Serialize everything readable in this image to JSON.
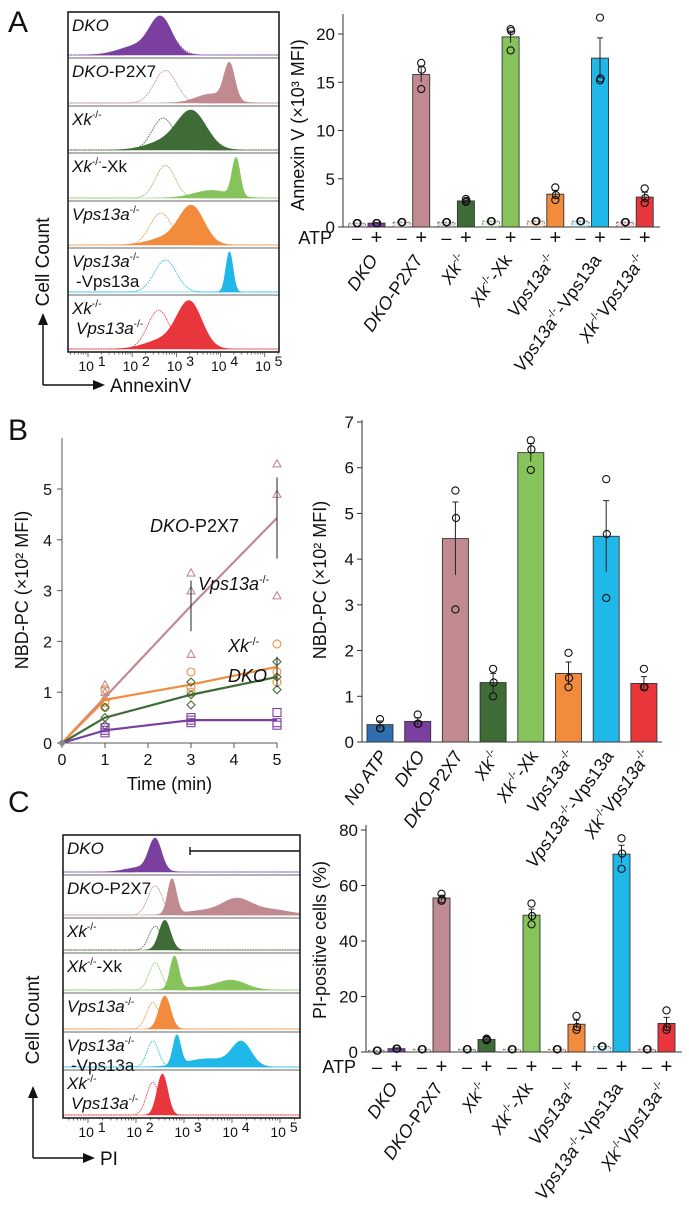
{
  "panels": {
    "a": "A",
    "b": "B",
    "c": "C"
  },
  "labels": {
    "DKO": [
      {
        "t": "DKO",
        "i": true
      }
    ],
    "DKO-P2X7": [
      {
        "t": "DKO",
        "i": true
      },
      {
        "t": "-P2X7"
      }
    ],
    "Xk-/-": [
      {
        "t": "Xk",
        "i": true
      },
      {
        "t": "-/-",
        "sup": true
      }
    ],
    "Xk-/--Xk": [
      {
        "t": "Xk",
        "i": true
      },
      {
        "t": "-/-",
        "sup": true
      },
      {
        "t": "-Xk"
      }
    ],
    "Vps13a-/-": [
      {
        "t": "Vps13a",
        "i": true
      },
      {
        "t": "-/-",
        "sup": true
      }
    ],
    "Vps13a-/--Vps13a": [
      {
        "t": "Vps13a",
        "i": true
      },
      {
        "t": "-/-",
        "sup": true
      },
      {
        "t": "-Vps13a"
      }
    ],
    "Xk-/-Vps13a-/-": [
      {
        "t": "Xk",
        "i": true
      },
      {
        "t": "-/-",
        "sup": true
      },
      {
        "t": "Vps13a",
        "i": true
      },
      {
        "t": "-/-",
        "sup": true
      }
    ],
    "No ATP": [
      {
        "t": "No ATP",
        "i": true
      }
    ],
    "-Vps13a": [
      {
        "t": "-Vps13a"
      }
    ]
  },
  "colors": {
    "DKO": "#7b3fa0",
    "DKO-P2X7": "#c08a90",
    "Xk-/-": "#3e6b36",
    "Xk-/--Xk": "#86c35a",
    "Vps13a-/-": "#f28c3c",
    "Vps13a-/--Vps13a": "#1fb8e8",
    "Xk-/-Vps13a-/-": "#e8363c",
    "No ATP": "#2f6fb0"
  },
  "chart_data": [
    {
      "panel": "A",
      "type": "area",
      "xlabel": "AnnexinV",
      "ylabel": "Cell Count",
      "x_scale": "log",
      "x_ticks": [
        "10^1",
        "10^2",
        "10^3",
        "10^4",
        "10^5"
      ],
      "rows": [
        {
          "label": [
            "DKO"
          ],
          "control_peak": [
            2.65,
            0.28
          ],
          "peaks": [
            [
              2.65,
              0.25,
              1
            ],
            [
              2.1,
              0.4,
              0.25
            ]
          ]
        },
        {
          "label": [
            "DKO-P2X7"
          ],
          "control_peak": [
            2.75,
            0.25
          ],
          "peaks": [
            [
              4.2,
              0.12,
              1
            ],
            [
              3.8,
              0.35,
              0.25
            ]
          ]
        },
        {
          "label": [
            "Xk-/-"
          ],
          "control_peak": [
            2.7,
            0.25
          ],
          "peaks": [
            [
              3.35,
              0.33,
              1
            ],
            [
              2.7,
              0.4,
              0.2
            ]
          ]
        },
        {
          "label": [
            "Xk-/--Xk"
          ],
          "control_peak": [
            2.75,
            0.22
          ],
          "peaks": [
            [
              4.35,
              0.09,
              1
            ],
            [
              3.8,
              0.4,
              0.2
            ]
          ]
        },
        {
          "label": [
            "Vps13a-/-"
          ],
          "control_peak": [
            2.65,
            0.25
          ],
          "peaks": [
            [
              3.35,
              0.28,
              1
            ],
            [
              2.8,
              0.4,
              0.2
            ]
          ]
        },
        {
          "label": [
            "Vps13a-/-",
            "-Vps13a"
          ],
          "control_peak": [
            2.75,
            0.25
          ],
          "peaks": [
            [
              4.2,
              0.08,
              1
            ]
          ]
        },
        {
          "label": [
            "Xk-/-",
            "Vps13a-/-"
          ],
          "control_peak": [
            2.6,
            0.25
          ],
          "peaks": [
            [
              3.3,
              0.28,
              1
            ],
            [
              2.7,
              0.4,
              0.2
            ]
          ]
        }
      ]
    },
    {
      "panel": "A",
      "type": "bar",
      "ylabel": "Annexin V (×10³ MFI)",
      "ylim": [
        0,
        20
      ],
      "y_ticks": [
        "0",
        "5",
        "10",
        "15",
        "20"
      ],
      "atp_label": "ATP",
      "minus": "–",
      "plus": "+",
      "categories": [
        "DKO",
        "DKO-P2X7",
        "Xk-/-",
        "Xk-/--Xk",
        "Vps13a-/-",
        "Vps13a-/--Vps13a",
        "Xk-/-Vps13a-/-"
      ],
      "minus_values": [
        0.4,
        0.5,
        0.5,
        0.6,
        0.6,
        0.6,
        0.5
      ],
      "plus_values": [
        0.4,
        15.8,
        2.7,
        19.7,
        3.4,
        17.5,
        3.1
      ],
      "plus_sem": [
        0.05,
        0.8,
        0.1,
        0.6,
        0.4,
        2.1,
        0.5
      ],
      "minus_points": [
        [
          0.4,
          0.4,
          0.4
        ],
        [
          0.5,
          0.5,
          0.5
        ],
        [
          0.5,
          0.5,
          0.5
        ],
        [
          0.6,
          0.6,
          0.6
        ],
        [
          0.6,
          0.6,
          0.6
        ],
        [
          0.6,
          0.6,
          0.6
        ],
        [
          0.5,
          0.5,
          0.5
        ]
      ],
      "plus_points": [
        [
          0.4,
          0.4,
          0.4
        ],
        [
          17.0,
          16.3,
          14.3
        ],
        [
          2.9,
          2.7,
          2.6
        ],
        [
          20.5,
          20.3,
          18.3
        ],
        [
          4.1,
          3.3,
          2.8
        ],
        [
          21.7,
          15.4,
          15.2
        ],
        [
          4.0,
          3.0,
          2.5
        ]
      ]
    },
    {
      "panel": "B",
      "type": "line",
      "xlabel": "Time (min)",
      "ylabel": "NBD-PC (×10² MFI)",
      "xlim": [
        0,
        5
      ],
      "ylim": [
        0,
        5.8
      ],
      "x_ticks": [
        "0",
        "1",
        "2",
        "3",
        "4",
        "5"
      ],
      "y_ticks": [
        "0",
        "1",
        "2",
        "3",
        "4",
        "5"
      ],
      "x": [
        0,
        1,
        3,
        5
      ],
      "series": [
        {
          "name": "DKO-P2X7",
          "marker": "triangle",
          "means": [
            0,
            0.9,
            2.7,
            4.43
          ],
          "sem": [
            0,
            0.1,
            0.5,
            0.8
          ],
          "points": [
            [
              0,
              0,
              0
            ],
            [
              1.15,
              1.0,
              0.9
            ],
            [
              3.35,
              3.0,
              1.75
            ],
            [
              5.5,
              4.9,
              2.9
            ]
          ]
        },
        {
          "name": "Vps13a-/-",
          "marker": "circle",
          "means": [
            0,
            0.85,
            1.15,
            1.5
          ],
          "sem": [
            0,
            0.1,
            0.15,
            0.2
          ],
          "points": [
            [
              0,
              0,
              0
            ],
            [
              1.05,
              0.8,
              0.7
            ],
            [
              1.4,
              1.1,
              1.0
            ],
            [
              1.95,
              1.4,
              1.2
            ]
          ]
        },
        {
          "name": "Xk-/-",
          "marker": "diamond",
          "means": [
            0,
            0.5,
            0.95,
            1.3
          ],
          "sem": [
            0,
            0.1,
            0.15,
            0.2
          ],
          "points": [
            [
              0,
              0,
              0
            ],
            [
              0.7,
              0.5,
              0.35
            ],
            [
              1.2,
              0.95,
              0.75
            ],
            [
              1.6,
              1.3,
              1.05
            ]
          ]
        },
        {
          "name": "DKO",
          "marker": "square",
          "means": [
            0,
            0.25,
            0.45,
            0.45
          ],
          "sem": [
            0,
            0.03,
            0.05,
            0.08
          ],
          "points": [
            [
              0,
              0,
              0
            ],
            [
              0.3,
              0.25,
              0.2
            ],
            [
              0.5,
              0.45,
              0.4
            ],
            [
              0.6,
              0.4,
              0.35
            ]
          ]
        }
      ]
    },
    {
      "panel": "B",
      "type": "bar",
      "ylabel": "NBD-PC (×10² MFI)",
      "ylim": [
        0,
        7
      ],
      "y_ticks": [
        "0",
        "1",
        "2",
        "3",
        "4",
        "5",
        "6",
        "7"
      ],
      "categories": [
        "No ATP",
        "DKO",
        "DKO-P2X7",
        "Xk-/-",
        "Xk-/--Xk",
        "Vps13a-/-",
        "Vps13a-/--Vps13a",
        "Xk-/-Vps13a-/-"
      ],
      "values": [
        0.38,
        0.45,
        4.45,
        1.3,
        6.33,
        1.5,
        4.5,
        1.28
      ],
      "sem": [
        0.08,
        0.08,
        0.8,
        0.2,
        0.2,
        0.25,
        0.78,
        0.15
      ],
      "points": [
        [
          0.5,
          0.3,
          0.3
        ],
        [
          0.6,
          0.4,
          0.4
        ],
        [
          5.5,
          4.9,
          2.9
        ],
        [
          1.6,
          1.3,
          1.0
        ],
        [
          6.6,
          6.4,
          5.95
        ],
        [
          1.95,
          1.4,
          1.2
        ],
        [
          5.75,
          4.55,
          3.15
        ],
        [
          1.6,
          1.2,
          1.2
        ]
      ]
    },
    {
      "panel": "C",
      "type": "area",
      "xlabel": "PI",
      "ylabel": "Cell Count",
      "x_scale": "log",
      "x_ticks": [
        "10^1",
        "10^2",
        "10^3",
        "10^4",
        "10^5"
      ],
      "rows": [
        {
          "label": [
            "DKO"
          ],
          "control_peak": [
            2.4,
            0.13
          ],
          "peaks": [
            [
              2.4,
              0.13,
              1
            ],
            [
              2.1,
              0.3,
              0.15
            ]
          ]
        },
        {
          "label": [
            "DKO-P2X7"
          ],
          "control_peak": [
            2.4,
            0.15
          ],
          "peaks": [
            [
              2.75,
              0.09,
              1
            ],
            [
              4.1,
              0.3,
              0.42
            ],
            [
              4.8,
              0.4,
              0.15
            ],
            [
              3.4,
              0.4,
              0.12
            ]
          ]
        },
        {
          "label": [
            "Xk-/-"
          ],
          "control_peak": [
            2.4,
            0.13
          ],
          "peaks": [
            [
              2.6,
              0.12,
              1
            ]
          ]
        },
        {
          "label": [
            "Xk-/--Xk"
          ],
          "control_peak": [
            2.4,
            0.13
          ],
          "peaks": [
            [
              2.8,
              0.09,
              1
            ],
            [
              4.0,
              0.3,
              0.28
            ],
            [
              3.3,
              0.4,
              0.08
            ]
          ]
        },
        {
          "label": [
            "Vps13a-/-"
          ],
          "control_peak": [
            2.35,
            0.13
          ],
          "peaks": [
            [
              2.6,
              0.12,
              1
            ]
          ]
        },
        {
          "label": [
            "Vps13a-/-",
            "-Vps13a"
          ],
          "control_peak": [
            2.35,
            0.12
          ],
          "peaks": [
            [
              2.85,
              0.08,
              1
            ],
            [
              4.2,
              0.2,
              0.8
            ],
            [
              3.5,
              0.45,
              0.28
            ]
          ]
        },
        {
          "label": [
            "Xk-/-",
            "Vps13a-/-"
          ],
          "control_peak": [
            2.35,
            0.13
          ],
          "peaks": [
            [
              2.55,
              0.11,
              1
            ]
          ]
        }
      ]
    },
    {
      "panel": "C",
      "type": "bar",
      "ylabel": "PI-positive cells (%)",
      "ylim": [
        0,
        80
      ],
      "y_ticks": [
        "0",
        "20",
        "40",
        "60",
        "80"
      ],
      "atp_label": "ATP",
      "minus": "–",
      "plus": "+",
      "categories": [
        "DKO",
        "DKO-P2X7",
        "Xk-/-",
        "Xk-/--Xk",
        "Vps13a-/-",
        "Vps13a-/--Vps13a",
        "Xk-/-Vps13a-/-"
      ],
      "minus_values": [
        0.5,
        1.0,
        1.0,
        1.0,
        1.0,
        2.0,
        1.0
      ],
      "plus_values": [
        1.2,
        55.5,
        4.5,
        49.3,
        10.0,
        71.3,
        10.3
      ],
      "plus_sem": [
        0.3,
        1.0,
        0.5,
        2.2,
        1.5,
        3.2,
        2.2
      ],
      "minus_points": [
        [
          0.5,
          0.5,
          0.5
        ],
        [
          1,
          1,
          1
        ],
        [
          1,
          1,
          1
        ],
        [
          1,
          1,
          1
        ],
        [
          1,
          1,
          1
        ],
        [
          2,
          2,
          2
        ],
        [
          1,
          1,
          1
        ]
      ],
      "plus_points": [
        [
          1.2,
          1.2,
          1.2
        ],
        [
          57,
          55,
          54.5
        ],
        [
          4.8,
          4.5,
          4.2
        ],
        [
          53.5,
          49,
          46
        ],
        [
          13,
          9,
          8
        ],
        [
          77,
          71.5,
          66
        ],
        [
          15,
          9,
          8
        ]
      ]
    }
  ]
}
